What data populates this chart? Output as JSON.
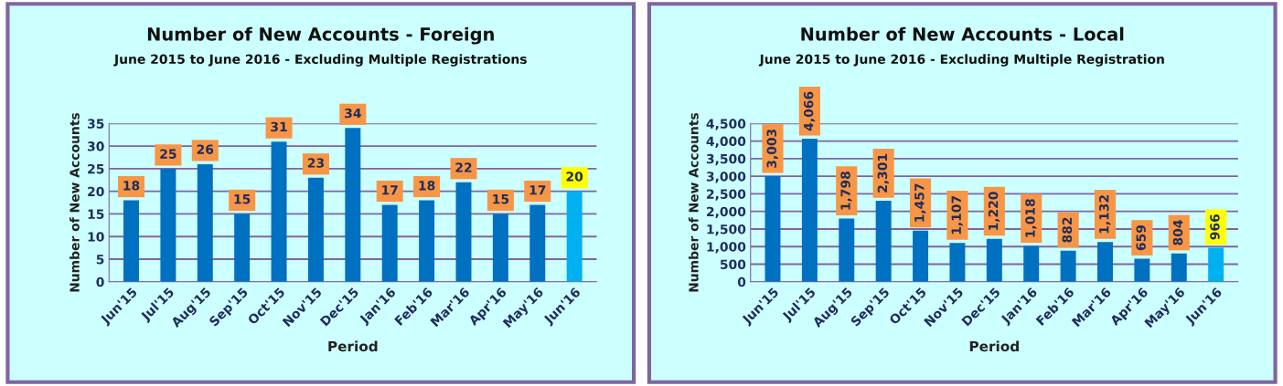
{
  "chart_data": [
    {
      "type": "bar",
      "title": "Number of New Accounts - Foreign",
      "subtitle": "June 2015 to June 2016 - Excluding Multiple Registrations",
      "xlabel": "Period",
      "ylabel": "Number of New Accounts",
      "categories": [
        "Jun'15",
        "Jul'15",
        "Aug'15",
        "Sep'15",
        "Oct'15",
        "Nov'15",
        "Dec'15",
        "Jan'16",
        "Feb'16",
        "Mar'16",
        "Apr'16",
        "May'16",
        "Jun'16"
      ],
      "values": [
        18,
        25,
        26,
        15,
        31,
        23,
        34,
        17,
        18,
        22,
        15,
        17,
        20
      ],
      "colors": [
        "#0070c0",
        "#0070c0",
        "#0070c0",
        "#0070c0",
        "#0070c0",
        "#0070c0",
        "#0070c0",
        "#0070c0",
        "#0070c0",
        "#0070c0",
        "#0070c0",
        "#0070c0",
        "#00b0f0"
      ],
      "ylim": [
        0,
        35
      ],
      "yticks": [
        0,
        5,
        10,
        15,
        20,
        25,
        30,
        35
      ],
      "grid": "y",
      "data_labels": true
    },
    {
      "type": "bar",
      "title": "Number of New Accounts - Local",
      "subtitle": "June 2015 to June 2016 - Excluding Multiple Registration",
      "xlabel": "Period",
      "ylabel": "Number of New Accounts",
      "categories": [
        "Jun'15",
        "Jul'15",
        "Aug'15",
        "Sep'15",
        "Oct'15",
        "Nov'15",
        "Dec'15",
        "Jan'16",
        "Feb'16",
        "Mar'16",
        "Apr'16",
        "May'16",
        "Jun'16"
      ],
      "values": [
        3003,
        4066,
        1798,
        2301,
        1457,
        1107,
        1220,
        1018,
        882,
        1132,
        659,
        804,
        966
      ],
      "value_labels": [
        "3,003",
        "4,066",
        "1,798",
        "2,301",
        "1,457",
        "1,107",
        "1,220",
        "1,018",
        "882",
        "1,132",
        "659",
        "804",
        "966"
      ],
      "colors": [
        "#0070c0",
        "#0070c0",
        "#0070c0",
        "#0070c0",
        "#0070c0",
        "#0070c0",
        "#0070c0",
        "#0070c0",
        "#0070c0",
        "#0070c0",
        "#0070c0",
        "#0070c0",
        "#00b0f0"
      ],
      "ylim": [
        0,
        4500
      ],
      "yticks": [
        0,
        {
          "value": 500,
          "label": "500"
        },
        {
          "value": 1000,
          "label": "1,000"
        },
        {
          "value": 1500,
          "label": "1,500"
        },
        {
          "value": 2000,
          "label": "2,000"
        },
        {
          "value": 2500,
          "label": "2,500"
        },
        {
          "value": 3000,
          "label": "3,000"
        },
        {
          "value": 3500,
          "label": "3,500"
        },
        {
          "value": 4000,
          "label": "4,000"
        },
        {
          "value": 4500,
          "label": "4,500"
        }
      ],
      "grid": "y"
    }
  ]
}
